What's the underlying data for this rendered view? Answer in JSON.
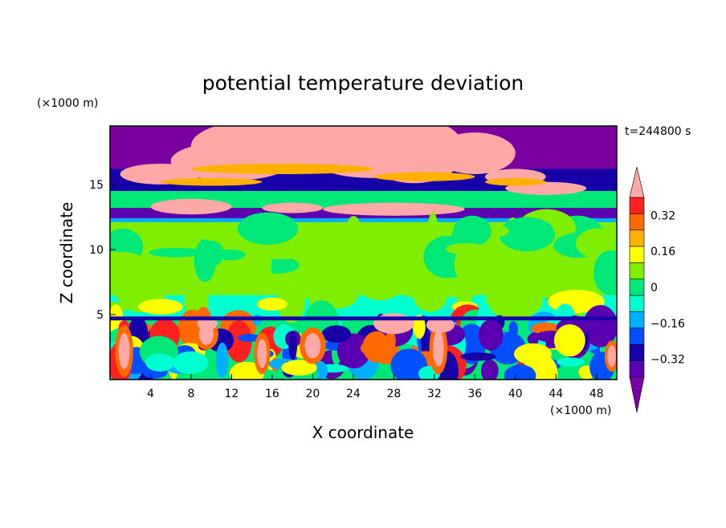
{
  "chart_data": {
    "type": "heatmap",
    "title": "potential temperature deviation",
    "xlabel": "X coordinate",
    "ylabel": "Z coordinate",
    "x_unit": "(×1000 m)",
    "y_unit": "(×1000 m)",
    "time_label": "t=244800 s",
    "xlim": [
      0,
      50
    ],
    "ylim": [
      0,
      19.5
    ],
    "x_ticks": [
      "4",
      "8",
      "12",
      "16",
      "20",
      "24",
      "28",
      "32",
      "36",
      "40",
      "44",
      "48"
    ],
    "y_ticks": [
      "5",
      "10",
      "15"
    ],
    "colorbar": {
      "levels": [
        -0.48,
        -0.4,
        -0.32,
        -0.24,
        -0.16,
        -0.08,
        0,
        0.08,
        0.16,
        0.24,
        0.32,
        0.4,
        0.48
      ],
      "tick_labels": [
        "0.32",
        "0.16",
        "0",
        "−0.16",
        "−0.32"
      ],
      "tick_values": [
        0.32,
        0.16,
        0,
        -0.16,
        -0.32
      ],
      "colors": [
        "#7b00a0",
        "#5a00b0",
        "#1800a8",
        "#0050ff",
        "#00b0ff",
        "#00ffd0",
        "#00e878",
        "#80ee00",
        "#ffff00",
        "#ffb000",
        "#ff6a00",
        "#ff2020",
        "#ffa8a8"
      ],
      "extend": "both"
    },
    "layers": [
      {
        "region": "z 16-19.5 km",
        "dominant": "mixed",
        "colors": [
          "#6a00a8",
          "#ffa8a8"
        ]
      },
      {
        "region": "z 12-16 km",
        "dominant": "banded",
        "colors": [
          "#1800a8",
          "#00e878",
          "#00ffd0"
        ]
      },
      {
        "region": "z 5-12 km",
        "dominant": "near zero",
        "colors": [
          "#80ee00",
          "#00e878"
        ]
      },
      {
        "region": "z 0-5 km",
        "dominant": "turbulent",
        "colors": [
          "#ff2020",
          "#ffff00",
          "#0050ff",
          "#1800a8"
        ]
      }
    ]
  }
}
